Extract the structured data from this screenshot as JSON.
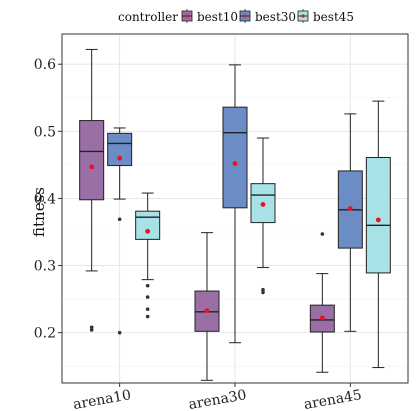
{
  "chart_data": {
    "type": "box",
    "title": "",
    "xlabel": "",
    "ylabel": "fitness",
    "ylim": [
      0.125,
      0.645
    ],
    "yticks": [
      0.2,
      0.3,
      0.4,
      0.5,
      0.6
    ],
    "ytick_labels": [
      "0.2",
      "0.3",
      "0.4",
      "0.5",
      "0.6"
    ],
    "grid": true,
    "legend": {
      "title": "controller",
      "position": "top"
    },
    "categories": [
      "arena10",
      "arena30",
      "arena45"
    ],
    "series": [
      {
        "name": "best10",
        "color": "#9a6fa6",
        "boxes": [
          {
            "min": 0.292,
            "q1": 0.398,
            "median": 0.47,
            "q3": 0.516,
            "max": 0.622,
            "mean": 0.447,
            "outliers": [
              0.204,
              0.208
            ]
          },
          {
            "min": 0.129,
            "q1": 0.202,
            "median": 0.231,
            "q3": 0.262,
            "max": 0.349,
            "mean": 0.233,
            "outliers": []
          },
          {
            "min": 0.141,
            "q1": 0.201,
            "median": 0.219,
            "q3": 0.241,
            "max": 0.288,
            "mean": 0.222,
            "outliers": [
              0.347
            ]
          }
        ]
      },
      {
        "name": "best30",
        "color": "#6b8cc4",
        "boxes": [
          {
            "min": 0.399,
            "q1": 0.449,
            "median": 0.482,
            "q3": 0.497,
            "max": 0.505,
            "mean": 0.46,
            "outliers": [
              0.369,
              0.2
            ]
          },
          {
            "min": 0.185,
            "q1": 0.386,
            "median": 0.498,
            "q3": 0.536,
            "max": 0.599,
            "mean": 0.452,
            "outliers": []
          },
          {
            "min": 0.202,
            "q1": 0.326,
            "median": 0.383,
            "q3": 0.441,
            "max": 0.526,
            "mean": 0.385,
            "outliers": []
          }
        ]
      },
      {
        "name": "best45",
        "color": "#a8e2e6",
        "boxes": [
          {
            "min": 0.279,
            "q1": 0.339,
            "median": 0.372,
            "q3": 0.381,
            "max": 0.408,
            "mean": 0.351,
            "outliers": [
              0.27,
              0.253,
              0.235,
              0.224
            ]
          },
          {
            "min": 0.297,
            "q1": 0.364,
            "median": 0.405,
            "q3": 0.422,
            "max": 0.49,
            "mean": 0.391,
            "outliers": [
              0.264,
              0.26
            ]
          },
          {
            "min": 0.148,
            "q1": 0.289,
            "median": 0.36,
            "q3": 0.461,
            "max": 0.545,
            "mean": 0.368,
            "outliers": []
          }
        ]
      }
    ]
  }
}
